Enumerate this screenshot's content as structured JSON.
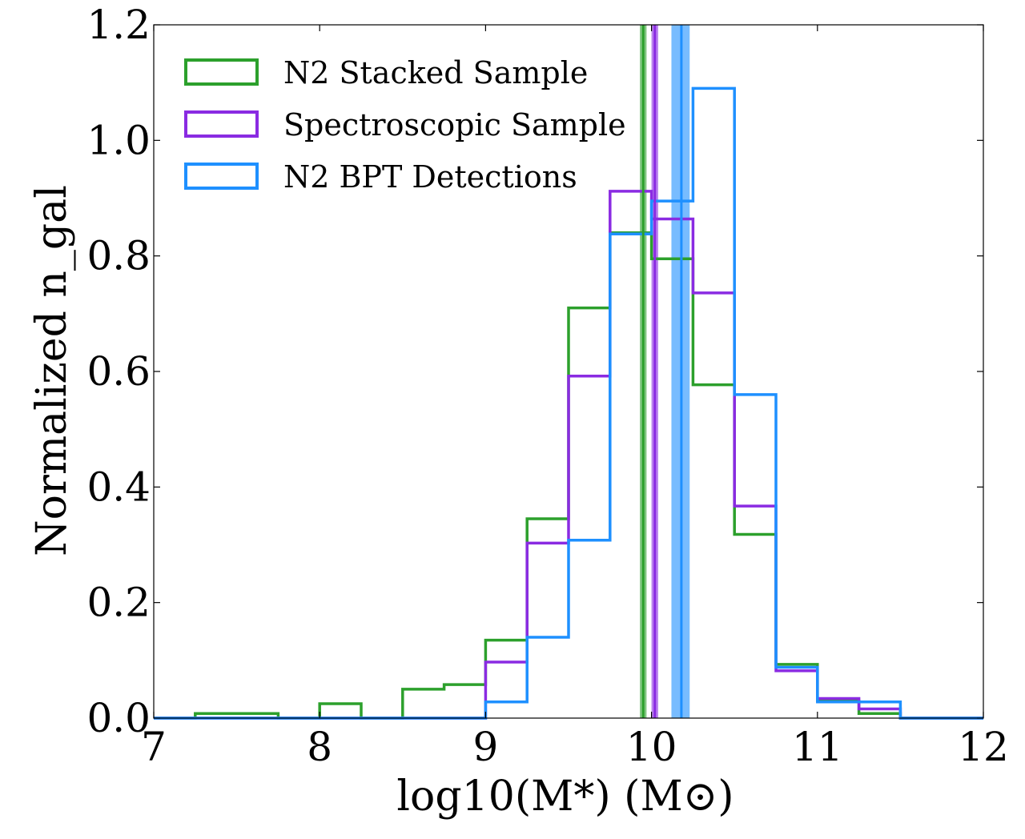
{
  "chart_data": {
    "type": "histogram",
    "xlabel": "log10(M*) (M⊙)",
    "ylabel": "Normalized n_gal",
    "xlim": [
      7,
      12
    ],
    "ylim": [
      0,
      1.2
    ],
    "xticks": [
      "7",
      "8",
      "9",
      "10",
      "11",
      "12"
    ],
    "yticks": [
      "0.0",
      "0.2",
      "0.4",
      "0.6",
      "0.8",
      "1.0",
      "1.2"
    ],
    "bin_edges": [
      7.0,
      7.25,
      7.5,
      7.75,
      8.0,
      8.25,
      8.5,
      8.75,
      9.0,
      9.25,
      9.5,
      9.75,
      10.0,
      10.25,
      10.5,
      10.75,
      11.0,
      11.25,
      11.5,
      11.75,
      12.0
    ],
    "legend_position": "top-left",
    "grid": false,
    "series": [
      {
        "name": "N2 Stacked Sample",
        "color": "#2ca02c",
        "values": [
          0.0,
          0.008,
          0.008,
          0.0,
          0.025,
          0.0,
          0.05,
          0.058,
          0.135,
          0.345,
          0.71,
          0.84,
          0.795,
          0.577,
          0.318,
          0.093,
          0.03,
          0.008,
          0.0,
          0.0
        ],
        "median": 9.95,
        "median_band": [
          9.93,
          9.97
        ]
      },
      {
        "name": "Spectroscopic Sample",
        "color": "#8a2be2",
        "values": [
          0.0,
          0.0,
          0.0,
          0.0,
          0.0,
          0.0,
          0.0,
          0.0,
          0.097,
          0.303,
          0.592,
          0.912,
          0.864,
          0.736,
          0.367,
          0.082,
          0.034,
          0.016,
          0.0,
          0.0
        ],
        "median": 10.02,
        "median_band": [
          10.0,
          10.04
        ]
      },
      {
        "name": "N2 BPT Detections",
        "color": "#1e90ff",
        "values": [
          0.0,
          0.0,
          0.0,
          0.0,
          0.0,
          0.0,
          0.0,
          0.0,
          0.028,
          0.14,
          0.308,
          0.838,
          0.895,
          1.09,
          0.56,
          0.088,
          0.028,
          0.028,
          0.0,
          0.0
        ],
        "median": 10.18,
        "median_band": [
          10.12,
          10.23
        ]
      }
    ]
  }
}
